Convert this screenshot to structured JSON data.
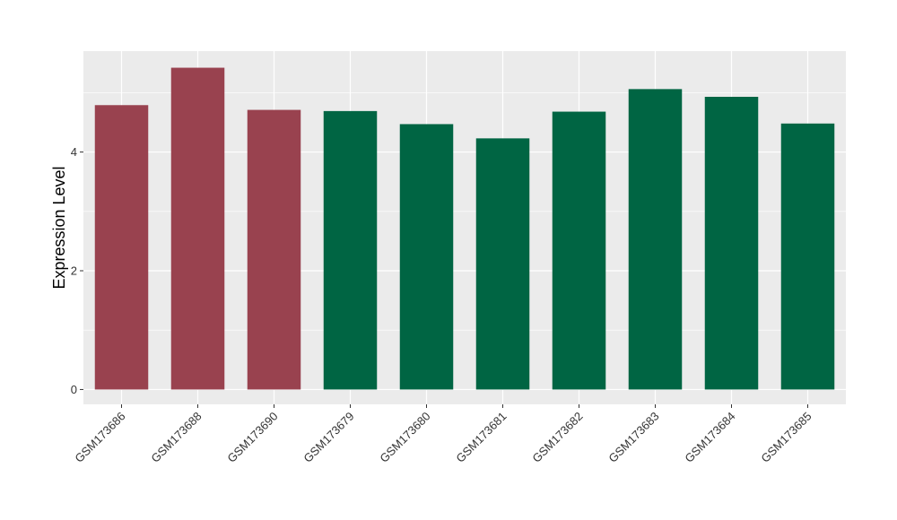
{
  "chart_data": {
    "type": "bar",
    "title": "",
    "xlabel": "",
    "ylabel": "Expression Level",
    "categories": [
      "GSM173686",
      "GSM173688",
      "GSM173690",
      "GSM173679",
      "GSM173680",
      "GSM173681",
      "GSM173682",
      "GSM173683",
      "GSM173684",
      "GSM173685"
    ],
    "values": [
      4.79,
      5.42,
      4.71,
      4.69,
      4.47,
      4.23,
      4.68,
      5.06,
      4.93,
      4.48
    ],
    "bar_colors": [
      "#99424f",
      "#99424f",
      "#99424f",
      "#006543",
      "#006543",
      "#006543",
      "#006543",
      "#006543",
      "#006543",
      "#006543"
    ],
    "ylim": [
      -0.25,
      5.7
    ],
    "yticks": [
      0,
      2,
      4
    ],
    "ytick_labels": [
      "0",
      "2",
      "4"
    ],
    "grid": true,
    "panel_background": "#ebebeb",
    "grid_color": "#ffffff",
    "legend": "none"
  }
}
